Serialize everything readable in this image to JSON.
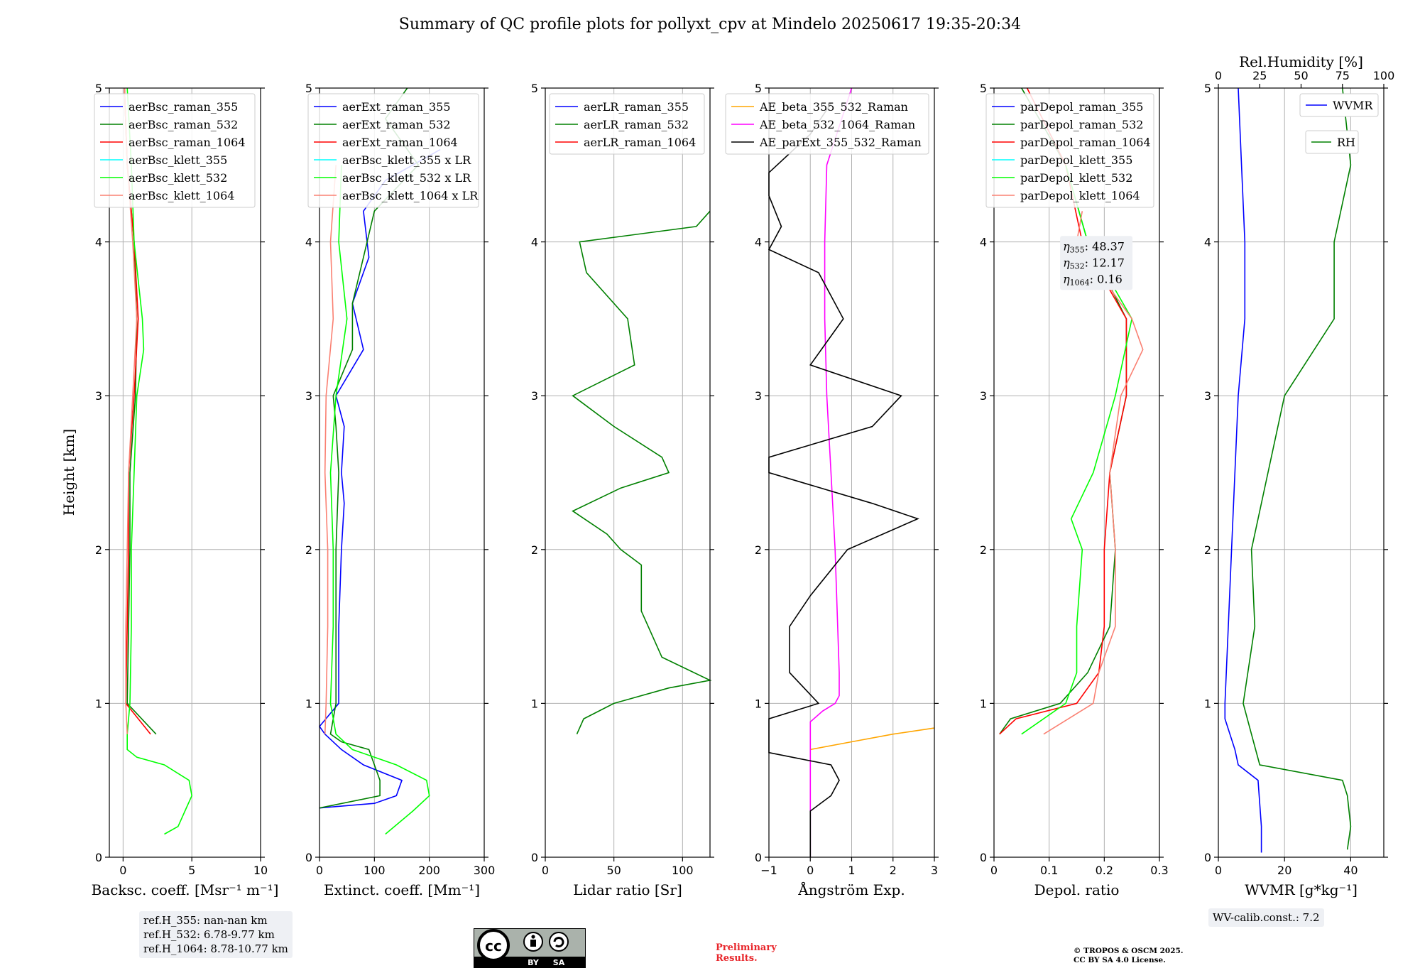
{
  "title": "Summary of QC profile plots for pollyxt_cpv at Mindelo 20250617 19:35-20:34",
  "ylabel": "Height [km]",
  "ref_box": [
    "ref.H_355: nan-nan km",
    "ref.H_532: 6.78-9.77 km",
    "ref.H_1064: 8.78-10.77 km"
  ],
  "wv_calib": "WV-calib.const.: 7.2",
  "preliminary": [
    "Preliminary",
    "Results."
  ],
  "copyright": [
    "© TROPOS & OSCM 2025.",
    "CC BY SA 4.0 License."
  ],
  "license_badge": {
    "by": "BY",
    "sa": "SA",
    "cc": "cc"
  },
  "colors": {
    "blue": "#0000ff",
    "green": "#008000",
    "red": "#ff0000",
    "cyan": "#00ffff",
    "lime": "#00ff00",
    "salmon": "#fa8072",
    "orange": "#ffa500",
    "magenta": "#ff00ff",
    "black": "#000000"
  },
  "chart_data": [
    {
      "type": "line",
      "xlabel": "Backsc. coeff. [Msr⁻¹ m⁻¹]",
      "xlim": [
        -1,
        10
      ],
      "ylim": [
        0,
        5
      ],
      "xticks": [
        0,
        5,
        10
      ],
      "yticks": [
        0,
        1,
        2,
        3,
        4,
        5
      ],
      "grid": true,
      "legend": "top-right",
      "series": [
        {
          "name": "aerBsc_raman_355",
          "color": "blue",
          "values": []
        },
        {
          "name": "aerBsc_raman_532",
          "color": "green",
          "y": [
            0.8,
            1.0,
            1.5,
            2.0,
            2.5,
            3.0,
            3.5,
            4.0,
            4.5,
            5.0
          ],
          "x": [
            2.4,
            0.3,
            0.4,
            0.5,
            0.5,
            0.9,
            1.0,
            0.8,
            0.3,
            0.1
          ]
        },
        {
          "name": "aerBsc_raman_1064",
          "color": "red",
          "y": [
            0.8,
            1.0,
            1.5,
            2.0,
            2.5,
            3.0,
            3.5,
            4.0,
            4.5,
            5.0
          ],
          "x": [
            2.0,
            0.2,
            0.3,
            0.4,
            0.4,
            0.8,
            1.1,
            0.8,
            0.3,
            0.1
          ]
        },
        {
          "name": "aerBsc_klett_355",
          "color": "cyan",
          "values": []
        },
        {
          "name": "aerBsc_klett_532",
          "color": "lime",
          "y": [
            0.15,
            0.2,
            0.3,
            0.4,
            0.5,
            0.6,
            0.65,
            0.7,
            0.8,
            1.0,
            1.5,
            2.0,
            2.5,
            3.0,
            3.3,
            3.5,
            4.0,
            4.5,
            5.0
          ],
          "x": [
            3.0,
            4.0,
            4.5,
            5.0,
            4.8,
            3.0,
            1.0,
            0.3,
            0.3,
            0.5,
            0.6,
            0.6,
            0.8,
            1.0,
            1.5,
            1.4,
            0.8,
            0.6,
            0.3
          ]
        },
        {
          "name": "aerBsc_klett_1064",
          "color": "salmon",
          "y": [
            0.8,
            1.0,
            1.5,
            2.0,
            2.5,
            3.0,
            3.5,
            4.0,
            4.5,
            5.0
          ],
          "x": [
            0.3,
            0.2,
            0.2,
            0.3,
            0.4,
            0.7,
            1.0,
            0.7,
            0.3,
            0.1
          ]
        }
      ]
    },
    {
      "type": "line",
      "xlabel": "Extinct. coeff. [Mm⁻¹]",
      "xlim": [
        0,
        300
      ],
      "ylim": [
        0,
        5
      ],
      "xticks": [
        0,
        100,
        200,
        300
      ],
      "yticks": [
        0,
        1,
        2,
        3,
        4,
        5
      ],
      "grid": true,
      "legend": "top-right",
      "series": [
        {
          "name": "aerExt_raman_355",
          "color": "blue",
          "y": [
            0.32,
            0.35,
            0.4,
            0.5,
            0.6,
            0.7,
            0.8,
            0.85,
            1.0,
            1.5,
            2.0,
            2.3,
            2.5,
            2.8,
            3.0,
            3.3,
            3.6,
            3.9,
            4.2,
            4.4,
            4.6
          ],
          "x": [
            0,
            100,
            140,
            150,
            80,
            40,
            10,
            0,
            35,
            35,
            40,
            45,
            40,
            45,
            30,
            80,
            60,
            90,
            80,
            120,
            220
          ]
        },
        {
          "name": "aerExt_raman_532",
          "color": "green",
          "y": [
            0.32,
            0.4,
            0.5,
            0.6,
            0.7,
            0.75,
            0.8,
            1.0,
            1.5,
            2.0,
            2.5,
            2.8,
            3.0,
            3.3,
            3.6,
            3.9,
            4.2,
            4.5,
            4.8,
            5.0
          ],
          "x": [
            0,
            110,
            110,
            100,
            90,
            40,
            20,
            30,
            30,
            30,
            35,
            30,
            25,
            60,
            60,
            80,
            100,
            180,
            120,
            160
          ]
        },
        {
          "name": "aerExt_raman_1064",
          "color": "red",
          "values": []
        },
        {
          "name": "aerBsc_klett_355 x LR",
          "color": "cyan",
          "values": []
        },
        {
          "name": "aerBsc_klett_532 x LR",
          "color": "lime",
          "y": [
            0.15,
            0.3,
            0.4,
            0.5,
            0.6,
            0.7,
            0.8,
            1.0,
            1.5,
            2.0,
            2.5,
            3.0,
            3.5,
            4.0,
            4.5
          ],
          "x": [
            120,
            170,
            200,
            195,
            140,
            60,
            30,
            20,
            25,
            25,
            20,
            30,
            50,
            35,
            40
          ]
        },
        {
          "name": "aerBsc_klett_1064 x LR",
          "color": "salmon",
          "y": [
            0.8,
            1.0,
            1.5,
            2.0,
            2.5,
            3.0,
            3.5,
            4.0,
            4.5
          ],
          "x": [
            10,
            12,
            15,
            15,
            10,
            12,
            25,
            20,
            30
          ]
        }
      ]
    },
    {
      "type": "line",
      "xlabel": "Lidar ratio [Sr]",
      "xlim": [
        0,
        120
      ],
      "ylim": [
        0,
        5
      ],
      "xticks": [
        0,
        50,
        100
      ],
      "yticks": [
        0,
        1,
        2,
        3,
        4,
        5
      ],
      "grid": true,
      "legend": "top-right",
      "series": [
        {
          "name": "aerLR_raman_355",
          "color": "blue",
          "values": []
        },
        {
          "name": "aerLR_raman_532",
          "color": "green",
          "y": [
            0.8,
            0.9,
            1.0,
            1.1,
            1.15,
            1.3,
            1.6,
            1.9,
            2.0,
            2.1,
            2.25,
            2.4,
            2.5,
            2.6,
            2.8,
            3.0,
            3.2,
            3.5,
            3.8,
            4.0,
            4.1,
            4.2
          ],
          "x": [
            23,
            28,
            50,
            90,
            120,
            85,
            70,
            70,
            55,
            45,
            20,
            55,
            90,
            85,
            50,
            20,
            65,
            60,
            30,
            25,
            110,
            120
          ]
        },
        {
          "name": "aerLR_raman_1064",
          "color": "red",
          "values": []
        }
      ]
    },
    {
      "type": "line",
      "xlabel": "Ångström Exp.",
      "xlim": [
        -1,
        3
      ],
      "ylim": [
        0,
        5
      ],
      "xticks": [
        -1,
        0,
        1,
        2,
        3
      ],
      "yticks": [
        0,
        1,
        2,
        3,
        4,
        5
      ],
      "grid": true,
      "legend": "top-right",
      "series": [
        {
          "name": "AE_beta_355_532_Raman",
          "color": "orange",
          "y": [
            0.7,
            0.75,
            0.8,
            0.84
          ],
          "x": [
            0.0,
            1.0,
            2.0,
            3.0
          ]
        },
        {
          "name": "AE_beta_532_1064_Raman",
          "color": "magenta",
          "y": [
            0.0,
            0.88,
            0.95,
            1.0,
            1.05,
            1.2,
            2.0,
            2.5,
            3.0,
            3.5,
            4.0,
            4.5,
            5.0
          ],
          "x": [
            0.0,
            0.0,
            0.3,
            0.6,
            0.7,
            0.7,
            0.6,
            0.5,
            0.4,
            0.35,
            0.35,
            0.4,
            1.0
          ]
        },
        {
          "name": "AE_parExt_355_532_Raman",
          "color": "black",
          "y": [
            0.0,
            0.3,
            0.4,
            0.5,
            0.6,
            0.68,
            0.9,
            1.0,
            1.2,
            1.5,
            1.7,
            2.0,
            2.2,
            2.3,
            2.5,
            2.6,
            2.8,
            3.0,
            3.2,
            3.5,
            3.8,
            3.95,
            4.1,
            4.3,
            4.45,
            4.7,
            4.9
          ],
          "x": [
            0.0,
            0.0,
            0.5,
            0.7,
            0.5,
            -1.0,
            -1.0,
            0.2,
            -0.5,
            -0.5,
            0.0,
            0.9,
            2.6,
            1.5,
            -1.0,
            -1.0,
            1.5,
            2.2,
            0.0,
            0.8,
            0.2,
            -1.0,
            -0.7,
            -1.0,
            -1.0,
            0.0,
            0.5
          ]
        }
      ]
    },
    {
      "type": "line",
      "xlabel": "Depol. ratio",
      "xlim": [
        0,
        0.3
      ],
      "ylim": [
        0,
        5
      ],
      "xticks": [
        0.0,
        0.1,
        0.2,
        0.3
      ],
      "yticks": [
        0,
        1,
        2,
        3,
        4,
        5
      ],
      "grid": true,
      "legend": "top-right",
      "annotation": {
        "eta355": "48.37",
        "eta532": "12.17",
        "eta1064": "0.16"
      },
      "series": [
        {
          "name": "parDepol_raman_355",
          "color": "blue",
          "values": []
        },
        {
          "name": "parDepol_raman_532",
          "color": "green",
          "y": [
            0.8,
            0.9,
            1.0,
            1.2,
            1.5,
            2.0,
            2.5,
            3.0,
            3.5,
            4.0,
            4.5,
            5.0
          ],
          "x": [
            0.01,
            0.03,
            0.12,
            0.17,
            0.21,
            0.22,
            0.21,
            0.24,
            0.24,
            0.17,
            0.13,
            0.05
          ]
        },
        {
          "name": "parDepol_raman_1064",
          "color": "red",
          "y": [
            0.8,
            0.9,
            1.0,
            1.2,
            1.5,
            2.0,
            2.5,
            3.0,
            3.5,
            4.0,
            4.5,
            5.0
          ],
          "x": [
            0.01,
            0.04,
            0.15,
            0.19,
            0.2,
            0.2,
            0.21,
            0.24,
            0.24,
            0.16,
            0.13,
            0.06
          ]
        },
        {
          "name": "parDepol_klett_355",
          "color": "cyan",
          "values": []
        },
        {
          "name": "parDepol_klett_532",
          "color": "lime",
          "y": [
            0.8,
            1.0,
            1.2,
            1.5,
            2.0,
            2.2,
            2.5,
            3.0,
            3.5,
            4.0,
            4.5
          ],
          "x": [
            0.05,
            0.13,
            0.15,
            0.15,
            0.16,
            0.14,
            0.18,
            0.22,
            0.25,
            0.17,
            0.13
          ]
        },
        {
          "name": "parDepol_klett_1064",
          "color": "salmon",
          "y": [
            0.8,
            1.0,
            1.2,
            1.5,
            2.0,
            2.5,
            3.0,
            3.3,
            3.5,
            4.0,
            4.2
          ],
          "x": [
            0.09,
            0.18,
            0.19,
            0.22,
            0.22,
            0.21,
            0.23,
            0.27,
            0.25,
            0.15,
            0.16
          ]
        }
      ]
    },
    {
      "type": "line",
      "xlabel": "WVMR [g*kg⁻¹]",
      "x2label": "Rel.Humidity [%]",
      "xlim": [
        0,
        50
      ],
      "x2lim": [
        0,
        100
      ],
      "ylim": [
        0,
        5
      ],
      "xticks": [
        0,
        20,
        40
      ],
      "x2ticks": [
        0,
        25,
        50,
        75,
        100
      ],
      "yticks": [
        0,
        1,
        2,
        3,
        4,
        5
      ],
      "grid": true,
      "series": [
        {
          "name": "WVMR",
          "color": "blue",
          "y": [
            0.03,
            0.2,
            0.5,
            0.6,
            0.7,
            0.9,
            1.0,
            1.5,
            2.0,
            2.5,
            3.0,
            3.5,
            4.0,
            4.5,
            5.0
          ],
          "x": [
            13,
            13,
            12,
            6,
            5,
            2,
            2,
            3,
            4,
            5,
            6,
            8,
            8,
            7,
            6
          ]
        },
        {
          "name": "RH",
          "color": "green",
          "axis": "x2",
          "y": [
            0.05,
            0.2,
            0.4,
            0.5,
            0.6,
            0.8,
            1.0,
            1.5,
            2.0,
            2.5,
            3.0,
            3.5,
            4.0,
            4.5,
            5.0
          ],
          "x": [
            78,
            80,
            78,
            75,
            25,
            20,
            15,
            22,
            20,
            30,
            40,
            70,
            70,
            80,
            75
          ]
        }
      ]
    }
  ]
}
